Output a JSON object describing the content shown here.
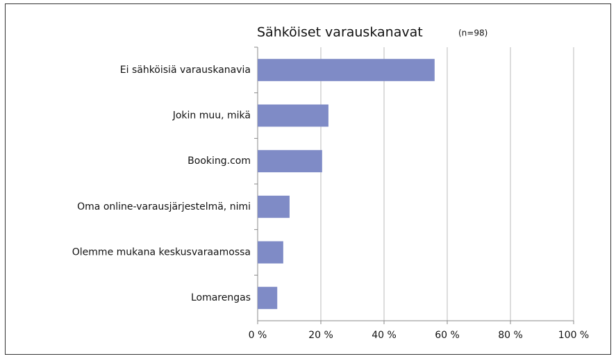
{
  "chart_data": {
    "type": "barh",
    "title": "Sähköiset varauskanavat",
    "subtitle": "(n=98)",
    "categories": [
      "Ei sähköisiä varauskanavia",
      "Jokin muu, mikä",
      "Booking.com",
      "Oma online-varausjärjestelmä, nimi",
      "Olemme mukana keskusvaraamossa",
      "Lomarengas"
    ],
    "values": [
      56,
      22.4,
      20.4,
      10.1,
      8.1,
      6.2
    ],
    "color": "#7f8bc6",
    "xlim": [
      0,
      100
    ],
    "xticks": [
      {
        "value": 0,
        "label": "0 %"
      },
      {
        "value": 20,
        "label": "20 %"
      },
      {
        "value": 40,
        "label": "40 %"
      },
      {
        "value": 60,
        "label": "60 %"
      },
      {
        "value": 80,
        "label": "80 %"
      },
      {
        "value": 100,
        "label": "100 %"
      }
    ],
    "grid": true
  }
}
